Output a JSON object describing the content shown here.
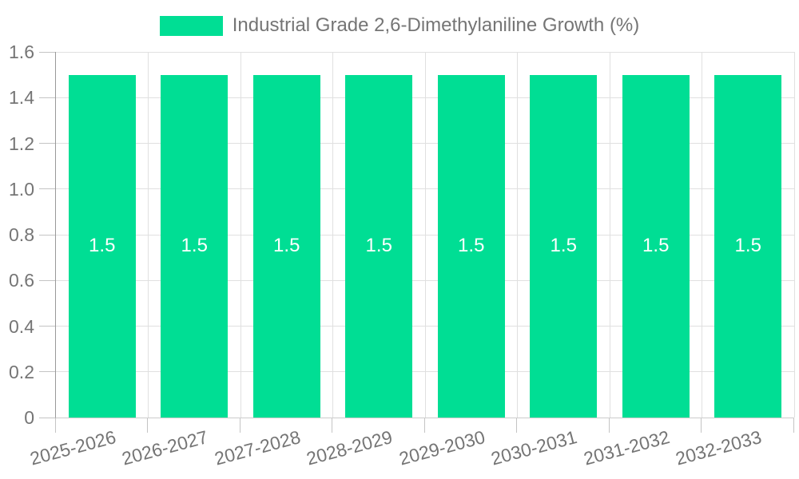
{
  "chart_data": {
    "type": "bar",
    "title": "Industrial Grade 2,6-Dimethylaniline Growth (%)",
    "legend": {
      "label": "Industrial Grade 2,6-Dimethylaniline Growth (%)",
      "position": "top-center"
    },
    "categories": [
      "2025-2026",
      "2026-2027",
      "2027-2028",
      "2028-2029",
      "2029-2030",
      "2030-2031",
      "2031-2032",
      "2032-2033"
    ],
    "series": [
      {
        "name": "Industrial Grade 2,6-Dimethylaniline Growth (%)",
        "values": [
          1.5,
          1.5,
          1.5,
          1.5,
          1.5,
          1.5,
          1.5,
          1.5
        ],
        "data_labels": [
          "1.5",
          "1.5",
          "1.5",
          "1.5",
          "1.5",
          "1.5",
          "1.5",
          "1.5"
        ]
      }
    ],
    "xlabel": "",
    "ylabel": "",
    "ylim": [
      0,
      1.6
    ],
    "yticks": [
      0,
      0.2,
      0.4,
      0.6,
      0.8,
      1.0,
      1.2,
      1.4,
      1.6
    ],
    "ytick_labels": [
      "0",
      "0.2",
      "0.4",
      "0.6",
      "0.8",
      "1.0",
      "1.2",
      "1.4",
      "1.6"
    ],
    "grid": true,
    "x_label_rotation_deg": -15,
    "colors": {
      "bar": "#00de94",
      "axis_text": "#757575",
      "bar_label_text": "#ffffff",
      "gridline": "#e0e0e0",
      "y_axis_line": "#999999",
      "baseline": "#cccccc",
      "tick": "#c4c4c4",
      "background": "#ffffff"
    }
  }
}
